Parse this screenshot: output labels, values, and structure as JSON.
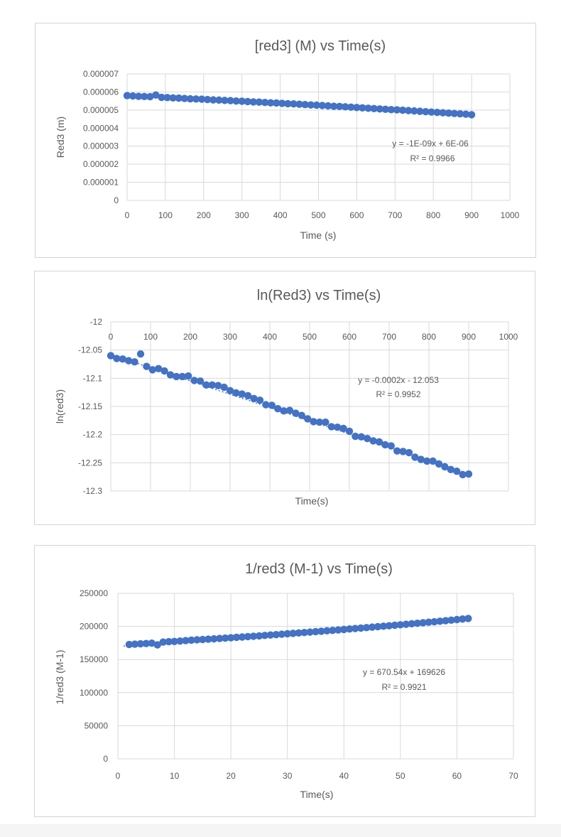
{
  "chart_data": [
    {
      "type": "scatter",
      "title": "[red3] (M) vs Time(s)",
      "xlabel": "Time (s)",
      "ylabel": "Red3 (m)",
      "xlim": [
        0,
        1000
      ],
      "ylim": [
        0,
        7e-06
      ],
      "xticks": [
        0,
        100,
        200,
        300,
        400,
        500,
        600,
        700,
        800,
        900,
        1000
      ],
      "xtick_labels": [
        "0",
        "100",
        "200",
        "300",
        "400",
        "500",
        "600",
        "700",
        "800",
        "900",
        "1000"
      ],
      "yticks": [
        0,
        1e-06,
        2e-06,
        3e-06,
        4e-06,
        5e-06,
        6e-06,
        7e-06
      ],
      "ytick_labels": [
        "0",
        "0.000001",
        "0.000002",
        "0.000003",
        "0.000004",
        "0.000005",
        "0.000006",
        "0.000007"
      ],
      "grid": true,
      "color": "#4472c4",
      "trendline": {
        "equation": "y = -1E-09x + 6E-06",
        "r2": "R² = 0.9966",
        "slope": -1.2e-09,
        "intercept": 5.79e-06
      },
      "series": [
        {
          "x": [
            0,
            15,
            30,
            45,
            60,
            75,
            90,
            105,
            120,
            135,
            150,
            165,
            180,
            195,
            210,
            225,
            240,
            255,
            270,
            285,
            300,
            315,
            330,
            345,
            360,
            375,
            390,
            405,
            420,
            435,
            450,
            465,
            480,
            495,
            510,
            525,
            540,
            555,
            570,
            585,
            600,
            615,
            630,
            645,
            660,
            675,
            690,
            705,
            720,
            735,
            750,
            765,
            780,
            795,
            810,
            825,
            840,
            855,
            870,
            885,
            900
          ],
          "y": [
            5.8e-06,
            5.78e-06,
            5.76e-06,
            5.75e-06,
            5.74e-06,
            5.83e-06,
            5.7e-06,
            5.69e-06,
            5.67e-06,
            5.66e-06,
            5.64e-06,
            5.62e-06,
            5.61e-06,
            5.6e-06,
            5.58e-06,
            5.56e-06,
            5.55e-06,
            5.53e-06,
            5.52e-06,
            5.5e-06,
            5.49e-06,
            5.47e-06,
            5.45e-06,
            5.44e-06,
            5.42e-06,
            5.4e-06,
            5.39e-06,
            5.37e-06,
            5.35e-06,
            5.34e-06,
            5.32e-06,
            5.3e-06,
            5.28e-06,
            5.27e-06,
            5.25e-06,
            5.23e-06,
            5.21e-06,
            5.2e-06,
            5.18e-06,
            5.16e-06,
            5.14e-06,
            5.12e-06,
            5.1e-06,
            5.08e-06,
            5.06e-06,
            5.04e-06,
            5.02e-06,
            5.01e-06,
            4.99e-06,
            4.97e-06,
            4.95e-06,
            4.93e-06,
            4.91e-06,
            4.89e-06,
            4.87e-06,
            4.85e-06,
            4.83e-06,
            4.81e-06,
            4.79e-06,
            4.77e-06,
            4.74e-06
          ]
        }
      ]
    },
    {
      "type": "scatter",
      "title": "ln(Red3) vs Time(s)",
      "xlabel": "Time(s)",
      "ylabel": "ln(red3)",
      "xlim": [
        0,
        1000
      ],
      "ylim": [
        -12.3,
        -12
      ],
      "xticks": [
        0,
        100,
        200,
        300,
        400,
        500,
        600,
        700,
        800,
        900,
        1000
      ],
      "xtick_labels": [
        "0",
        "100",
        "200",
        "300",
        "400",
        "500",
        "600",
        "700",
        "800",
        "900",
        "1000"
      ],
      "yticks": [
        -12,
        -12.05,
        -12.1,
        -12.15,
        -12.2,
        -12.25,
        -12.3
      ],
      "ytick_labels": [
        "-12",
        "-12.05",
        "-12.1",
        "-12.15",
        "-12.2",
        "-12.25",
        "-12.3"
      ],
      "x_axis_position": "top",
      "grid": true,
      "color": "#4472c4",
      "trendline": {
        "equation": "y = -0.0002x - 12.053",
        "r2": "R² = 0.9952",
        "slope": -0.000235,
        "intercept": -12.058
      },
      "series": [
        {
          "x": [
            0,
            15,
            30,
            45,
            60,
            75,
            90,
            105,
            120,
            135,
            150,
            165,
            180,
            195,
            210,
            225,
            240,
            255,
            270,
            285,
            300,
            315,
            330,
            345,
            360,
            375,
            390,
            405,
            420,
            435,
            450,
            465,
            480,
            495,
            510,
            525,
            540,
            555,
            570,
            585,
            600,
            615,
            630,
            645,
            660,
            675,
            690,
            705,
            720,
            735,
            750,
            765,
            780,
            795,
            810,
            825,
            840,
            855,
            870,
            885,
            900
          ],
          "y": [
            -12.06,
            -12.065,
            -12.066,
            -12.069,
            -12.071,
            -12.057,
            -12.079,
            -12.085,
            -12.083,
            -12.087,
            -12.094,
            -12.097,
            -12.097,
            -12.096,
            -12.104,
            -12.105,
            -12.112,
            -12.112,
            -12.113,
            -12.116,
            -12.122,
            -12.126,
            -12.128,
            -12.131,
            -12.136,
            -12.139,
            -12.147,
            -12.148,
            -12.154,
            -12.158,
            -12.157,
            -12.162,
            -12.166,
            -12.172,
            -12.177,
            -12.178,
            -12.178,
            -12.186,
            -12.187,
            -12.189,
            -12.194,
            -12.203,
            -12.204,
            -12.207,
            -12.211,
            -12.213,
            -12.218,
            -12.22,
            -12.229,
            -12.23,
            -12.232,
            -12.24,
            -12.244,
            -12.247,
            -12.247,
            -12.252,
            -12.257,
            -12.262,
            -12.265,
            -12.271,
            -12.27
          ]
        }
      ]
    },
    {
      "type": "scatter",
      "title": "1/red3 (M-1) vs Time(s)",
      "xlabel": "Time(s)",
      "ylabel": "1/red3 (M-1)",
      "xlim": [
        0,
        70
      ],
      "ylim": [
        0,
        250000
      ],
      "xticks": [
        0,
        10,
        20,
        30,
        40,
        50,
        60,
        70
      ],
      "xtick_labels": [
        "0",
        "10",
        "20",
        "30",
        "40",
        "50",
        "60",
        "70"
      ],
      "yticks": [
        0,
        50000,
        100000,
        150000,
        200000,
        250000
      ],
      "ytick_labels": [
        "0",
        "50000",
        "100000",
        "150000",
        "200000",
        "250000"
      ],
      "grid": true,
      "color": "#4472c4",
      "trendline": {
        "equation": "y = 670.54x + 169626",
        "r2": "R² = 0.9921",
        "slope": 670.54,
        "intercept": 169626
      },
      "series": [
        {
          "x": [
            2,
            3,
            4,
            5,
            6,
            7,
            8,
            9,
            10,
            11,
            12,
            13,
            14,
            15,
            16,
            17,
            18,
            19,
            20,
            21,
            22,
            23,
            24,
            25,
            26,
            27,
            28,
            29,
            30,
            31,
            32,
            33,
            34,
            35,
            36,
            37,
            38,
            39,
            40,
            41,
            42,
            43,
            44,
            45,
            46,
            47,
            48,
            49,
            50,
            51,
            52,
            53,
            54,
            55,
            56,
            57,
            58,
            59,
            60,
            61,
            62
          ],
          "y": [
            172700,
            173200,
            173800,
            174200,
            174700,
            172100,
            176300,
            177000,
            177200,
            177900,
            178600,
            179200,
            179800,
            180200,
            180700,
            181200,
            181800,
            182300,
            182900,
            183500,
            184000,
            184600,
            185200,
            185700,
            186400,
            187000,
            187600,
            188200,
            188900,
            189500,
            190100,
            190800,
            191400,
            192100,
            192700,
            193400,
            194000,
            194700,
            195400,
            196100,
            196800,
            197500,
            198200,
            198900,
            199600,
            200300,
            201000,
            201800,
            202500,
            203200,
            204000,
            204700,
            205500,
            206300,
            207000,
            207800,
            208600,
            209400,
            210300,
            211100,
            212000
          ]
        }
      ]
    }
  ]
}
